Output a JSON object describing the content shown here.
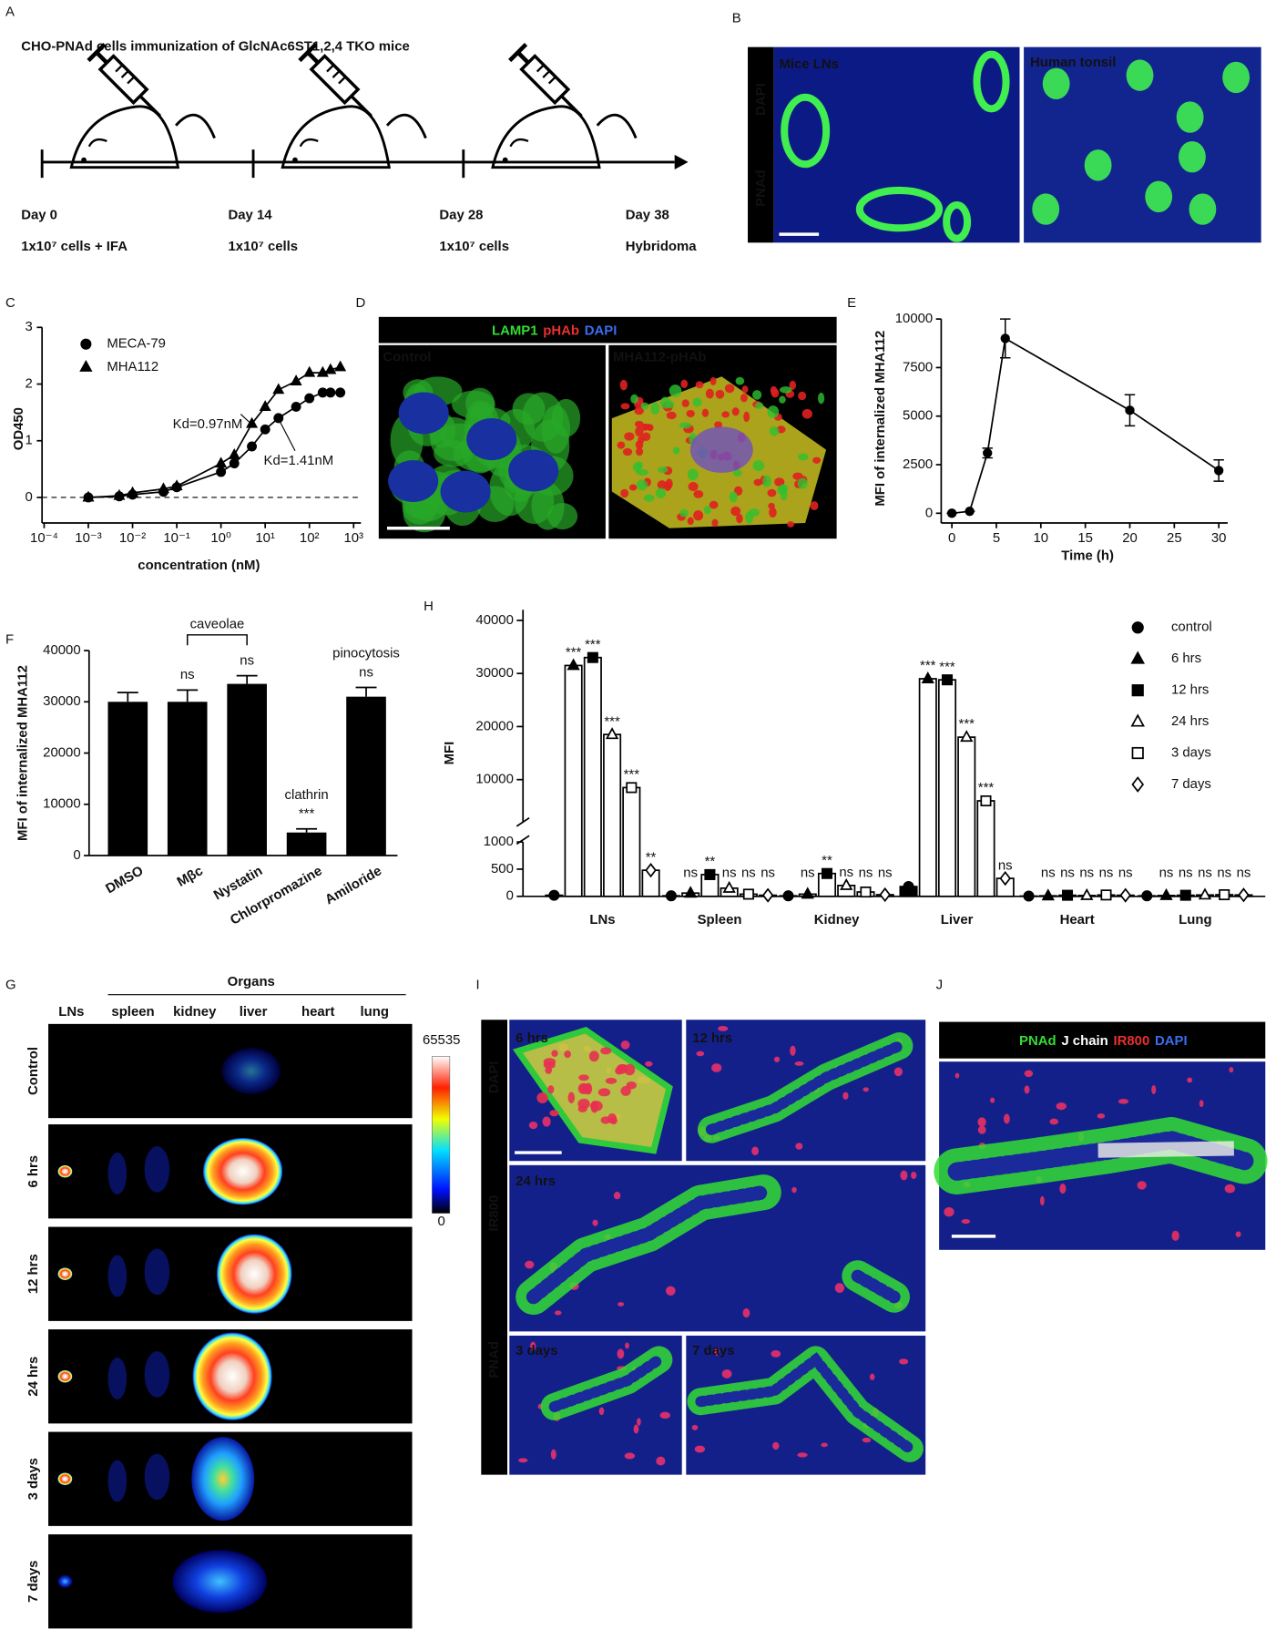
{
  "panel_labels": [
    "A",
    "B",
    "C",
    "D",
    "E",
    "F",
    "G",
    "H",
    "I",
    "J"
  ],
  "panels": {
    "a": {
      "title": "CHO-PNAd cells immunization of GlcNAc6ST1,2,4 TKO mice",
      "timepoints": [
        {
          "day": "Day 0",
          "detail": "1x10⁷ cells + IFA"
        },
        {
          "day": "Day 14",
          "detail": "1x10⁷ cells"
        },
        {
          "day": "Day 28",
          "detail": "1x10⁷ cells"
        },
        {
          "day": "Day 38",
          "detail": "Hybridoma"
        }
      ]
    },
    "b": {
      "stains": [
        {
          "text": "DAPI",
          "color": "#2f5bd6"
        },
        {
          "text": "PNAd",
          "color": "#33dd33"
        }
      ],
      "images": [
        "Mice LNs",
        "Human tonsil"
      ]
    },
    "d": {
      "stains": [
        {
          "text": "LAMP1",
          "color": "#33dd33"
        },
        {
          "text": "pHAb",
          "color": "#e83030"
        },
        {
          "text": "DAPI",
          "color": "#3a6df0"
        }
      ],
      "images": [
        "Control",
        "MHA112-pHAb"
      ]
    },
    "g": {
      "title": "Organs",
      "columns": [
        "LNs",
        "spleen",
        "kidney",
        "liver",
        "heart",
        "lung"
      ],
      "rows": [
        "Control",
        "6 hrs",
        "12 hrs",
        "24 hrs",
        "3 days",
        "7 days"
      ],
      "colorbar": [
        0,
        65535
      ]
    },
    "i": {
      "stains": [
        {
          "text": "DAPI",
          "color": "#3a6df0"
        },
        {
          "text": "IR800",
          "color": "#e83030"
        },
        {
          "text": "PNAd",
          "color": "#33dd33"
        }
      ],
      "images": [
        "6 hrs",
        "12 hrs",
        "24 hrs",
        "3 days",
        "7 days"
      ]
    },
    "j": {
      "stains": [
        {
          "text": "PNAd",
          "color": "#33dd33"
        },
        {
          "text": "J chain",
          "color": "#ffffff"
        },
        {
          "text": "IR800",
          "color": "#e83030"
        },
        {
          "text": "DAPI",
          "color": "#3a6df0"
        }
      ]
    }
  },
  "chart_data": [
    {
      "type": "scatter",
      "x_label": "concentration (nM)",
      "y_label": "OD450",
      "log_x": true,
      "x": [
        0.001,
        0.005,
        0.01,
        0.05,
        0.1,
        1,
        2,
        5,
        10,
        20,
        50,
        100,
        200,
        300,
        500
      ],
      "xlim": [
        0.0001,
        1000
      ],
      "xticks": [
        {
          "value": 0.0001,
          "label": "10⁻⁴"
        },
        {
          "value": 0.001,
          "label": "10⁻³"
        },
        {
          "value": 0.01,
          "label": "10⁻²"
        },
        {
          "value": 0.1,
          "label": "10⁻¹"
        },
        {
          "value": 1,
          "label": "10⁰"
        },
        {
          "value": 10,
          "label": "10¹"
        },
        {
          "value": 100,
          "label": "10²"
        },
        {
          "value": 1000,
          "label": "10³"
        }
      ],
      "ylim": [
        -0.45,
        3
      ],
      "yticks": [
        0,
        1,
        2,
        3
      ],
      "zero_line": true,
      "series": [
        {
          "name": "MECA-79",
          "marker": "circle",
          "color": "#000000",
          "values": [
            0,
            0.02,
            0.05,
            0.1,
            0.18,
            0.45,
            0.6,
            0.9,
            1.2,
            1.4,
            1.6,
            1.75,
            1.85,
            1.85,
            1.85
          ]
        },
        {
          "name": "MHA112",
          "marker": "triangle",
          "color": "#000000",
          "values": [
            0,
            0.03,
            0.08,
            0.15,
            0.2,
            0.6,
            0.75,
            1.3,
            1.6,
            1.9,
            2.05,
            2.2,
            2.2,
            2.25,
            2.3
          ]
        }
      ],
      "annotations": [
        "Kd=0.97nM",
        "Kd=1.41nM"
      ]
    },
    {
      "type": "line",
      "x_label": "Time (h)",
      "y_label": "MFI of internalized MHA112",
      "x": [
        0,
        2,
        4,
        6,
        20,
        30
      ],
      "values": [
        0,
        100,
        3100,
        9000,
        5300,
        2200
      ],
      "errors": [
        0,
        0,
        250,
        1000,
        800,
        550
      ],
      "xlim": [
        -1.2,
        31
      ],
      "xticks": [
        0,
        5,
        10,
        15,
        20,
        25,
        30
      ],
      "ylim": [
        -500,
        10000
      ],
      "yticks": [
        0,
        2500,
        5000,
        7500,
        10000
      ],
      "color": "#000000"
    },
    {
      "type": "bar",
      "y_label": "MFI of internalized MHA112",
      "categories": [
        "DMSO",
        "Mβc",
        "Nystatin",
        "Chlorpromazine",
        "Amiloride"
      ],
      "values": [
        30000,
        30000,
        33500,
        4500,
        31000
      ],
      "errors": [
        1800,
        2300,
        1600,
        700,
        1800
      ],
      "significance": [
        null,
        "ns",
        "ns",
        "***",
        "ns"
      ],
      "mechanisms": [
        null,
        null,
        null,
        "clathrin",
        "pinocytosis"
      ],
      "bracket_label": "caveolae",
      "ylim": [
        0,
        40000
      ],
      "yticks": [
        0,
        10000,
        20000,
        30000,
        40000
      ],
      "color": "#000000"
    },
    {
      "type": "grouped_bar",
      "y_label": "MFI",
      "categories": [
        "LNs",
        "Spleen",
        "Kidney",
        "Liver",
        "Heart",
        "Lung"
      ],
      "ylim_lower": [
        0,
        1000
      ],
      "yticks_lower": [
        0,
        500,
        1000
      ],
      "ylim": [
        2000,
        42000
      ],
      "yticks": [
        10000,
        20000,
        30000,
        40000
      ],
      "series": [
        {
          "name": "control",
          "marker": "circle",
          "filled": true,
          "values": [
            20,
            10,
            10,
            180,
            5,
            10
          ]
        },
        {
          "name": "6 hrs",
          "marker": "triangle",
          "filled": true,
          "values": [
            31500,
            60,
            40,
            29000,
            10,
            15
          ],
          "significance": [
            "***",
            "ns",
            "ns",
            "***",
            "ns",
            "ns"
          ]
        },
        {
          "name": "12 hrs",
          "marker": "square",
          "filled": true,
          "values": [
            33000,
            400,
            420,
            28800,
            20,
            20
          ],
          "significance": [
            "***",
            "**",
            "**",
            "***",
            "ns",
            "ns"
          ]
        },
        {
          "name": "24 hrs",
          "marker": "triangle",
          "filled": false,
          "values": [
            18500,
            150,
            200,
            18000,
            15,
            25
          ],
          "significance": [
            "***",
            "ns",
            "ns",
            "***",
            "ns",
            "ns"
          ]
        },
        {
          "name": "3 days",
          "marker": "square",
          "filled": false,
          "values": [
            8500,
            40,
            80,
            6000,
            25,
            30
          ],
          "significance": [
            "***",
            "ns",
            "ns",
            "***",
            "ns",
            "ns"
          ]
        },
        {
          "name": "7 days",
          "marker": "diamond",
          "filled": false,
          "values": [
            480,
            20,
            30,
            330,
            20,
            25
          ],
          "significance": [
            "**",
            "ns",
            "ns",
            "ns",
            "ns",
            "ns"
          ]
        }
      ]
    }
  ]
}
